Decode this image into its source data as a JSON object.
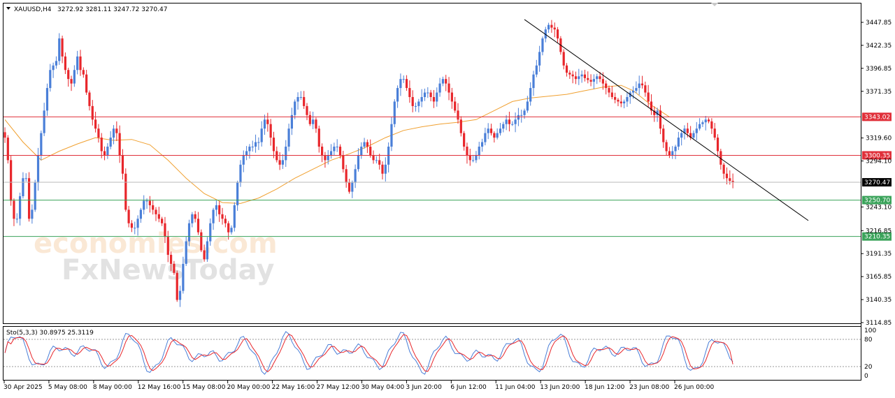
{
  "header": {
    "menu_arrow_icon": "triangle-down-icon",
    "symbol": "XAUUSD,H4",
    "ohlc": "3272.92 3281.11 3247.72 3270.47"
  },
  "watermark": {
    "line1": "economies.com",
    "line2": "FxNewsToday"
  },
  "colors": {
    "bull": "#4a7fd8",
    "bear": "#e8262b",
    "ma": "#f0a030",
    "trendline": "#000000",
    "resistance": "#e0303a",
    "support": "#3aa35a",
    "stoch_main": "#4a7fd8",
    "stoch_signal": "#e8262b"
  },
  "chart_data": [
    {
      "type": "candlestick",
      "title": "XAUUSD,H4",
      "ylim": [
        3114.85,
        3460
      ],
      "y_ticks": [
        "3447.85",
        "3422.35",
        "3396.85",
        "3371.35",
        "3319.60",
        "3294.10",
        "3243.10",
        "3216.85",
        "3191.35",
        "3165.85",
        "3140.35",
        "3114.85"
      ],
      "x_labels": [
        "30 Apr 2025",
        "5 May 08:00",
        "8 May 00:00",
        "12 May 16:00",
        "15 May 08:00",
        "20 May 00:00",
        "22 May 16:00",
        "27 May 12:00",
        "30 May 04:00",
        "3 Jun 20:00",
        "6 Jun 12:00",
        "11 Jun 04:00",
        "13 Jun 20:00",
        "18 Jun 12:00",
        "23 Jun 08:00",
        "26 Jun 00:00"
      ],
      "current_price": "3270.47",
      "levels": [
        {
          "value": 3343.02,
          "label": "3343.02",
          "kind": "resistance"
        },
        {
          "value": 3300.35,
          "label": "3300.35",
          "kind": "resistance"
        },
        {
          "value": 3250.7,
          "label": "3250.70",
          "kind": "support"
        },
        {
          "value": 3210.35,
          "label": "3210.35",
          "kind": "support"
        }
      ],
      "trendline": {
        "from": [
          172,
          3451
        ],
        "to": [
          222,
          3252
        ]
      },
      "ma_points": [
        [
          0,
          3340
        ],
        [
          6,
          3315
        ],
        [
          12,
          3295
        ],
        [
          18,
          3305
        ],
        [
          24,
          3313
        ],
        [
          30,
          3320
        ],
        [
          36,
          3317
        ],
        [
          42,
          3318
        ],
        [
          48,
          3312
        ],
        [
          54,
          3295
        ],
        [
          60,
          3275
        ],
        [
          66,
          3258
        ],
        [
          72,
          3248
        ],
        [
          78,
          3247
        ],
        [
          84,
          3253
        ],
        [
          90,
          3263
        ],
        [
          96,
          3275
        ],
        [
          102,
          3285
        ],
        [
          108,
          3295
        ],
        [
          114,
          3302
        ],
        [
          120,
          3310
        ],
        [
          126,
          3320
        ],
        [
          132,
          3328
        ],
        [
          138,
          3332
        ],
        [
          144,
          3335
        ],
        [
          150,
          3337
        ],
        [
          156,
          3340
        ],
        [
          162,
          3350
        ],
        [
          168,
          3360
        ],
        [
          174,
          3364
        ],
        [
          180,
          3366
        ],
        [
          186,
          3368
        ],
        [
          192,
          3372
        ],
        [
          198,
          3376
        ],
        [
          204,
          3378
        ],
        [
          208,
          3372
        ],
        [
          214,
          3356
        ],
        [
          220,
          3343
        ]
      ],
      "closes": [
        3320,
        3295,
        3250,
        3230,
        3230,
        3255,
        3275,
        3275,
        3230,
        3240,
        3270,
        3300,
        3325,
        3350,
        3375,
        3395,
        3400,
        3405,
        3430,
        3410,
        3395,
        3385,
        3380,
        3395,
        3410,
        3395,
        3390,
        3370,
        3355,
        3340,
        3330,
        3320,
        3305,
        3300,
        3310,
        3320,
        3330,
        3325,
        3300,
        3280,
        3240,
        3225,
        3220,
        3220,
        3230,
        3240,
        3250,
        3250,
        3245,
        3240,
        3235,
        3230,
        3225,
        3210,
        3190,
        3180,
        3170,
        3140,
        3150,
        3180,
        3205,
        3225,
        3235,
        3230,
        3215,
        3195,
        3185,
        3205,
        3225,
        3240,
        3245,
        3235,
        3230,
        3225,
        3215,
        3220,
        3245,
        3270,
        3290,
        3300,
        3305,
        3310,
        3310,
        3315,
        3315,
        3330,
        3340,
        3335,
        3320,
        3305,
        3295,
        3290,
        3295,
        3310,
        3330,
        3345,
        3360,
        3365,
        3365,
        3355,
        3345,
        3335,
        3340,
        3330,
        3310,
        3300,
        3295,
        3300,
        3305,
        3310,
        3310,
        3300,
        3285,
        3270,
        3260,
        3270,
        3285,
        3300,
        3310,
        3315,
        3310,
        3300,
        3295,
        3295,
        3290,
        3280,
        3290,
        3310,
        3335,
        3360,
        3375,
        3385,
        3385,
        3375,
        3365,
        3355,
        3355,
        3360,
        3365,
        3370,
        3370,
        3365,
        3360,
        3370,
        3380,
        3385,
        3380,
        3370,
        3360,
        3350,
        3340,
        3325,
        3310,
        3300,
        3295,
        3295,
        3300,
        3310,
        3315,
        3325,
        3330,
        3325,
        3320,
        3325,
        3330,
        3335,
        3340,
        3335,
        3335,
        3340,
        3345,
        3345,
        3350,
        3360,
        3375,
        3390,
        3400,
        3415,
        3430,
        3440,
        3445,
        3442,
        3440,
        3430,
        3415,
        3400,
        3392,
        3390,
        3388,
        3385,
        3388,
        3390,
        3386,
        3384,
        3382,
        3385,
        3388,
        3385,
        3380,
        3375,
        3370,
        3365,
        3362,
        3360,
        3358,
        3360,
        3365,
        3370,
        3372,
        3375,
        3380,
        3378,
        3370,
        3360,
        3350,
        3345,
        3350,
        3330,
        3315,
        3305,
        3300,
        3305,
        3310,
        3320,
        3325,
        3330,
        3325,
        3320,
        3325,
        3330,
        3335,
        3337,
        3340,
        3338,
        3330,
        3320,
        3305,
        3290,
        3280,
        3275,
        3272,
        3270.47
      ],
      "stochastic": {
        "label": "Sto(5,3,3) 30.8975 25.3119",
        "ylim": [
          0,
          100
        ],
        "levels": [
          20,
          80
        ],
        "y_ticks": [
          "100",
          "80",
          "20",
          "0"
        ]
      }
    }
  ]
}
